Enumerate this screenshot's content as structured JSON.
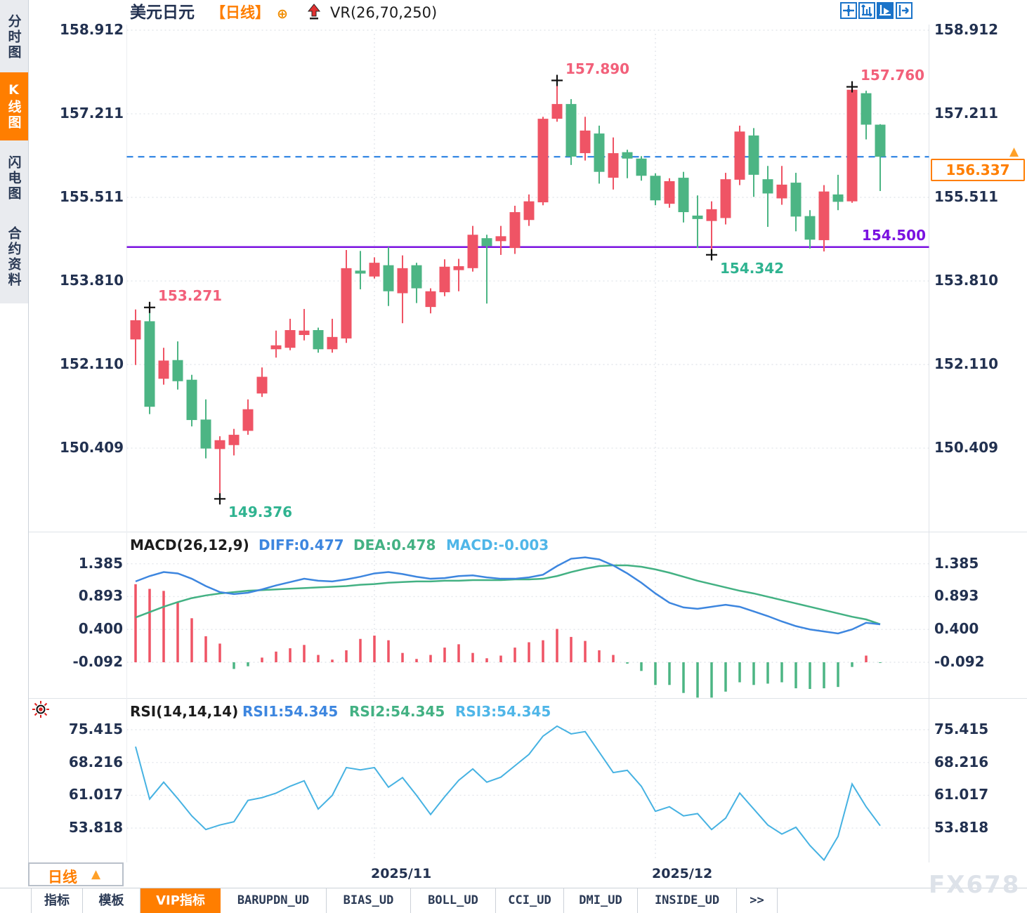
{
  "app": {
    "watermark": "FX678"
  },
  "colors": {
    "up": "#ef5465",
    "down": "#4cb584",
    "diff_line": "#3d86df",
    "dea_line": "#43b183",
    "rsi_line": "#46b2e2",
    "current_price_line": "#1b78e0",
    "support_line": "#7a12e0",
    "accent_orange": "#ff7e00",
    "axis_text": "#223150",
    "label_pink": "#f2607a",
    "label_green": "#2fb390",
    "grid": "#e4e7ec"
  },
  "sidebar": {
    "tabs": [
      {
        "label": "分时图",
        "active": false
      },
      {
        "label": "K线图",
        "active": true
      },
      {
        "label": "闪电图",
        "active": false
      },
      {
        "label": "合约资料",
        "active": false
      }
    ]
  },
  "header": {
    "symbol": "美元日元",
    "period": "【日线】",
    "plus_icon": "⊕",
    "indicator": "VR(26,70,250)"
  },
  "toolbar": {
    "icons": [
      "crosshair-icon",
      "axis-range-icon",
      "auto-scale-icon",
      "pan-right-icon"
    ],
    "active_index": 2
  },
  "main_panel": {
    "y_axis_labels": [
      "158.912",
      "157.211",
      "155.511",
      "153.810",
      "152.110",
      "150.409"
    ],
    "current_price": {
      "label": "156.337",
      "arrow": "▲"
    },
    "support_line": {
      "label": "154.500"
    },
    "annotations": [
      {
        "text": "153.271",
        "candle": 1,
        "price": 153.271,
        "marker": "high",
        "color": "pink"
      },
      {
        "text": "157.890",
        "candle": 30,
        "price": 157.89,
        "marker": "high",
        "color": "pink"
      },
      {
        "text": "157.760",
        "candle": 51,
        "price": 157.76,
        "marker": "high",
        "color": "pink"
      },
      {
        "text": "149.376",
        "candle": 6,
        "price": 149.376,
        "marker": "low",
        "color": "green"
      },
      {
        "text": "154.342",
        "candle": 41,
        "price": 154.342,
        "marker": "low",
        "color": "green"
      }
    ]
  },
  "macd_panel": {
    "title": "MACD(26,12,9)",
    "diff_label": "DIFF:0.477",
    "dea_label": "DEA:0.478",
    "macd_label": "MACD:-0.003",
    "y_axis_labels": [
      "1.385",
      "0.893",
      "0.400",
      "-0.092"
    ]
  },
  "rsi_panel": {
    "title": "RSI(14,14,14)",
    "rsi1_label": "RSI1:54.345",
    "rsi2_label": "RSI2:54.345",
    "rsi3_label": "RSI3:54.345",
    "y_axis_labels": [
      "75.415",
      "68.216",
      "61.017",
      "53.818"
    ]
  },
  "x_axis": {
    "labels": [
      {
        "text": "2025/11",
        "candle_index": 17
      },
      {
        "text": "2025/12",
        "candle_index": 37
      }
    ]
  },
  "period_button": {
    "label": "日线",
    "arrow": "▲"
  },
  "bottom_tabs": [
    {
      "label": "指标",
      "active": false,
      "mono": false
    },
    {
      "label": "模板",
      "active": false,
      "mono": false
    },
    {
      "label": "VIP指标",
      "active": true,
      "mono": false
    },
    {
      "label": "BARUPDN_UD",
      "active": false,
      "mono": true
    },
    {
      "label": "BIAS_UD",
      "active": false,
      "mono": true
    },
    {
      "label": "BOLL_UD",
      "active": false,
      "mono": true
    },
    {
      "label": "CCI_UD",
      "active": false,
      "mono": true
    },
    {
      "label": "DMI_UD",
      "active": false,
      "mono": true
    },
    {
      "label": "INSIDE_UD",
      "active": false,
      "mono": true
    },
    {
      "label": ">>",
      "active": false,
      "mono": true
    }
  ],
  "chart_data": {
    "type": "candlestick",
    "symbol": "美元日元",
    "interval": "日线 (daily)",
    "price_axis_ticks": [
      158.912,
      157.211,
      155.511,
      153.81,
      152.11,
      150.409
    ],
    "current_price": 156.337,
    "support_level": 154.5,
    "marked_high_1": 153.271,
    "marked_high_2": 157.89,
    "marked_high_3": 157.76,
    "marked_low_1": 149.376,
    "marked_low_2": 154.342,
    "candles_ohlc": [
      [
        152.62,
        153.23,
        152.1,
        153.01
      ],
      [
        152.99,
        153.271,
        151.1,
        151.25
      ],
      [
        151.82,
        152.45,
        151.7,
        152.19
      ],
      [
        152.2,
        152.58,
        151.6,
        151.77
      ],
      [
        151.8,
        151.9,
        150.85,
        150.98
      ],
      [
        150.99,
        151.4,
        150.2,
        150.4
      ],
      [
        150.39,
        150.65,
        149.376,
        150.57
      ],
      [
        150.47,
        150.8,
        150.26,
        150.68
      ],
      [
        150.76,
        151.4,
        150.68,
        151.2
      ],
      [
        151.52,
        152.05,
        151.45,
        151.86
      ],
      [
        152.42,
        152.8,
        152.25,
        152.5
      ],
      [
        152.45,
        153.04,
        152.4,
        152.81
      ],
      [
        152.71,
        153.24,
        152.6,
        152.8
      ],
      [
        152.81,
        152.86,
        152.35,
        152.42
      ],
      [
        152.42,
        153.04,
        152.35,
        152.67
      ],
      [
        152.64,
        154.44,
        152.55,
        154.07
      ],
      [
        154.02,
        154.42,
        153.64,
        153.96
      ],
      [
        153.9,
        154.29,
        153.86,
        154.18
      ],
      [
        154.13,
        154.5,
        153.3,
        153.6
      ],
      [
        153.56,
        154.33,
        152.95,
        154.07
      ],
      [
        154.13,
        154.18,
        153.36,
        153.66
      ],
      [
        153.28,
        153.66,
        153.15,
        153.6
      ],
      [
        153.58,
        154.25,
        153.5,
        154.1
      ],
      [
        154.03,
        154.26,
        153.6,
        154.11
      ],
      [
        154.07,
        154.93,
        154.0,
        154.75
      ],
      [
        154.68,
        154.75,
        153.35,
        154.52
      ],
      [
        154.62,
        154.93,
        154.34,
        154.72
      ],
      [
        154.48,
        155.34,
        154.36,
        155.21
      ],
      [
        155.05,
        155.57,
        154.93,
        155.43
      ],
      [
        155.41,
        157.15,
        155.35,
        157.11
      ],
      [
        157.11,
        157.89,
        157.05,
        157.41
      ],
      [
        157.41,
        157.51,
        156.17,
        156.34
      ],
      [
        156.41,
        157.15,
        156.26,
        156.87
      ],
      [
        156.81,
        156.97,
        155.79,
        156.03
      ],
      [
        155.91,
        156.73,
        155.67,
        156.41
      ],
      [
        156.43,
        156.48,
        155.9,
        156.3
      ],
      [
        156.3,
        156.35,
        155.85,
        155.95
      ],
      [
        155.95,
        156.0,
        155.35,
        155.45
      ],
      [
        155.38,
        155.9,
        155.3,
        155.84
      ],
      [
        155.91,
        156.03,
        155.0,
        155.21
      ],
      [
        155.14,
        155.55,
        154.48,
        155.07
      ],
      [
        155.03,
        155.43,
        154.342,
        155.27
      ],
      [
        155.09,
        156.01,
        154.96,
        155.88
      ],
      [
        155.87,
        156.97,
        155.76,
        156.85
      ],
      [
        156.77,
        156.92,
        155.52,
        155.97
      ],
      [
        155.88,
        156.15,
        154.91,
        155.59
      ],
      [
        155.49,
        156.15,
        155.36,
        155.77
      ],
      [
        155.81,
        156.01,
        154.82,
        155.12
      ],
      [
        155.13,
        155.25,
        154.47,
        154.65
      ],
      [
        154.64,
        155.76,
        154.41,
        155.63
      ],
      [
        155.57,
        155.97,
        155.25,
        155.42
      ],
      [
        155.43,
        157.76,
        155.4,
        157.7
      ],
      [
        157.63,
        157.68,
        156.69,
        156.99
      ],
      [
        156.99,
        157.0,
        155.64,
        156.337
      ]
    ],
    "macd": {
      "params": [
        26,
        12,
        9
      ],
      "axis_ticks": [
        1.385,
        0.893,
        0.4,
        -0.092
      ],
      "diff_last": 0.477,
      "dea_last": 0.478,
      "macd_last": -0.003,
      "diff": [
        1.12,
        1.2,
        1.26,
        1.24,
        1.16,
        1.05,
        0.96,
        0.93,
        0.95,
        1.0,
        1.06,
        1.11,
        1.16,
        1.13,
        1.12,
        1.15,
        1.19,
        1.24,
        1.26,
        1.23,
        1.19,
        1.16,
        1.17,
        1.2,
        1.21,
        1.18,
        1.16,
        1.16,
        1.18,
        1.22,
        1.35,
        1.46,
        1.48,
        1.45,
        1.36,
        1.24,
        1.1,
        0.94,
        0.8,
        0.73,
        0.71,
        0.74,
        0.77,
        0.74,
        0.67,
        0.6,
        0.52,
        0.45,
        0.4,
        0.37,
        0.34,
        0.4,
        0.5,
        0.477
      ],
      "dea": [
        0.58,
        0.66,
        0.74,
        0.81,
        0.87,
        0.91,
        0.94,
        0.96,
        0.98,
        0.99,
        1.0,
        1.01,
        1.02,
        1.03,
        1.04,
        1.05,
        1.07,
        1.08,
        1.1,
        1.11,
        1.12,
        1.12,
        1.13,
        1.13,
        1.14,
        1.14,
        1.14,
        1.15,
        1.15,
        1.16,
        1.2,
        1.26,
        1.31,
        1.35,
        1.36,
        1.36,
        1.34,
        1.3,
        1.25,
        1.19,
        1.13,
        1.08,
        1.03,
        0.98,
        0.94,
        0.89,
        0.84,
        0.79,
        0.74,
        0.69,
        0.64,
        0.59,
        0.55,
        0.478
      ],
      "hist": [
        1.17,
        1.1,
        1.07,
        0.9,
        0.66,
        0.39,
        0.28,
        -0.1,
        -0.06,
        0.07,
        0.16,
        0.21,
        0.26,
        0.11,
        0.04,
        0.18,
        0.35,
        0.4,
        0.33,
        0.14,
        0.05,
        0.11,
        0.22,
        0.27,
        0.14,
        0.06,
        0.1,
        0.22,
        0.3,
        0.33,
        0.5,
        0.38,
        0.32,
        0.18,
        0.11,
        -0.02,
        -0.13,
        -0.34,
        -0.34,
        -0.46,
        -0.53,
        -0.53,
        -0.44,
        -0.3,
        -0.34,
        -0.32,
        -0.3,
        -0.39,
        -0.4,
        -0.39,
        -0.37,
        -0.07,
        0.1,
        -0.003
      ]
    },
    "rsi": {
      "params": [
        14,
        14,
        14
      ],
      "axis_ticks": [
        75.415,
        68.216,
        61.017,
        53.818
      ],
      "last": 54.345,
      "values": [
        71.7,
        60.2,
        63.9,
        60.3,
        56.5,
        53.5,
        54.5,
        55.2,
        59.9,
        60.5,
        61.5,
        63.0,
        64.2,
        58.0,
        61.0,
        67.1,
        66.6,
        67.1,
        62.8,
        64.9,
        61.0,
        56.8,
        60.7,
        64.3,
        66.8,
        63.9,
        65.0,
        67.5,
        70.0,
        74.0,
        76.2,
        74.5,
        75.0,
        70.5,
        66.0,
        66.5,
        63.0,
        57.5,
        58.5,
        56.5,
        57.0,
        53.5,
        56.0,
        61.5,
        58.0,
        54.5,
        52.5,
        54.0,
        50.0,
        46.8,
        52.0,
        63.5,
        58.5,
        54.345
      ]
    }
  }
}
